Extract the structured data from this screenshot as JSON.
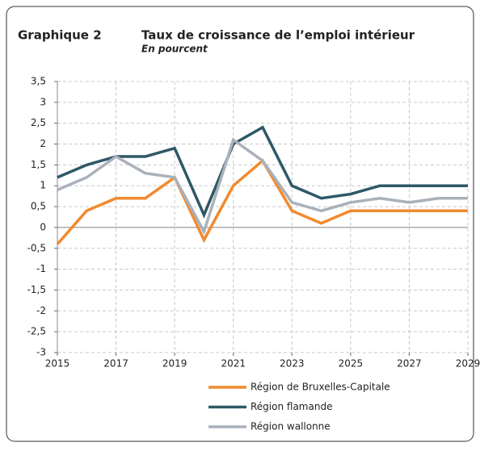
{
  "chart_data": {
    "type": "line",
    "figure_label": "Graphique 2",
    "title": "Taux de croissance de l’emploi intérieur",
    "subtitle": "En pourcent",
    "x": [
      2015,
      2016,
      2017,
      2018,
      2019,
      2020,
      2021,
      2022,
      2023,
      2024,
      2025,
      2026,
      2027,
      2028,
      2029
    ],
    "xlim": [
      2015,
      2029
    ],
    "xticks": [
      2015,
      2017,
      2019,
      2021,
      2023,
      2025,
      2027,
      2029
    ],
    "ylim": [
      -3,
      3.5
    ],
    "yticks": [
      {
        "value": -3,
        "label": "-3"
      },
      {
        "value": -2.5,
        "label": "-2,5"
      },
      {
        "value": -2,
        "label": "-2"
      },
      {
        "value": -1.5,
        "label": "-1,5"
      },
      {
        "value": -1,
        "label": "-1"
      },
      {
        "value": -0.5,
        "label": "-0,5"
      },
      0,
      {
        "value": 0.5,
        "label": "0,5"
      },
      1,
      {
        "value": 1.5,
        "label": "1,5"
      },
      2,
      {
        "value": 2.5,
        "label": "2,5"
      },
      3,
      {
        "value": 3.5,
        "label": "3,5"
      }
    ],
    "grid": true,
    "series": [
      {
        "name": "Région de Bruxelles-Capitale",
        "color": "#f28a2e",
        "values": [
          -0.4,
          0.4,
          0.7,
          0.7,
          1.2,
          -0.3,
          1.0,
          1.6,
          0.4,
          0.1,
          0.4,
          0.4,
          0.4,
          0.4,
          0.4
        ]
      },
      {
        "name": "Région flamande",
        "color": "#2e5866",
        "values": [
          1.2,
          1.5,
          1.7,
          1.7,
          1.9,
          0.3,
          2.0,
          2.4,
          1.0,
          0.7,
          0.8,
          1.0,
          1.0,
          1.0,
          1.0
        ]
      },
      {
        "name": "Région wallonne",
        "color": "#a9b1bb",
        "values": [
          0.9,
          1.2,
          1.7,
          1.3,
          1.2,
          -0.1,
          2.1,
          1.6,
          0.6,
          0.4,
          0.6,
          0.7,
          0.6,
          0.7,
          0.7
        ]
      }
    ]
  }
}
